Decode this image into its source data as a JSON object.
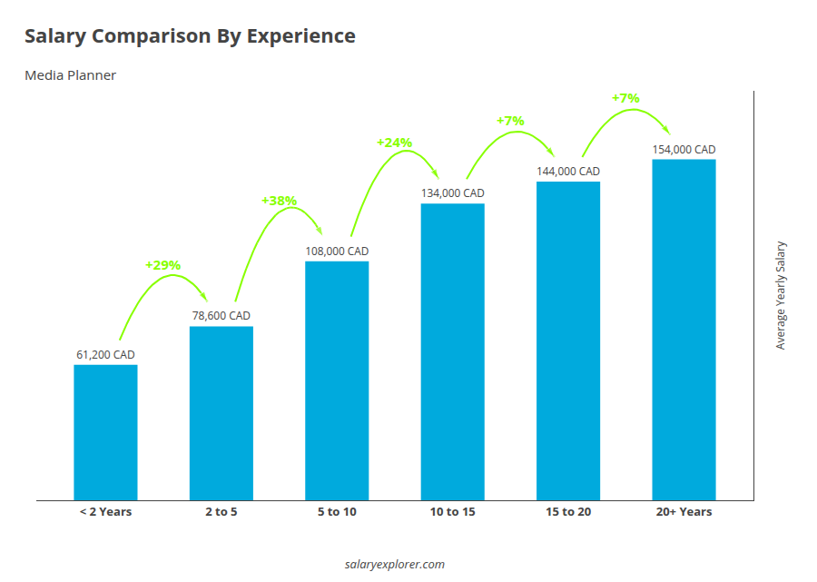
{
  "chart_data": {
    "type": "bar",
    "title": "Salary Comparison By Experience",
    "subtitle": "Media Planner",
    "categories": [
      "< 2 Years",
      "2 to 5",
      "5 to 10",
      "10 to 15",
      "15 to 20",
      "20+ Years"
    ],
    "values": [
      61200,
      78600,
      108000,
      134000,
      144000,
      154000
    ],
    "value_labels": [
      "61,200 CAD",
      "78,600 CAD",
      "108,000 CAD",
      "134,000 CAD",
      "144,000 CAD",
      "154,000 CAD"
    ],
    "data_labels": true,
    "color": "#00aadd",
    "ylabel": "Average Yearly Salary",
    "ylim": [
      0,
      185000
    ],
    "yticks": [],
    "tick_labels": "x",
    "grid": false,
    "annotations": [
      {
        "text": "+29%",
        "color": "#88ff00"
      },
      {
        "text": "+38%",
        "color": "#88ff00"
      },
      {
        "text": "+24%",
        "color": "#88ff00"
      },
      {
        "text": "+7%",
        "color": "#88ff00"
      },
      {
        "text": "+7%",
        "color": "#88ff00"
      }
    ],
    "footer": "salaryexplorer.com"
  }
}
